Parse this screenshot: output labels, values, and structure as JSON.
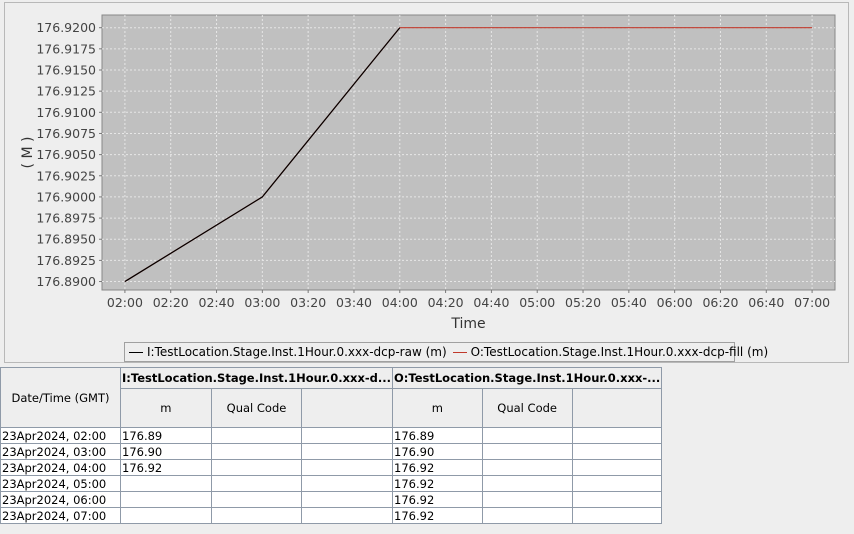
{
  "chart_data": {
    "type": "line",
    "xlabel": "Time",
    "ylabel": "( M )",
    "x_ticks": [
      "02:00",
      "02:20",
      "02:40",
      "03:00",
      "03:20",
      "03:40",
      "04:00",
      "04:20",
      "04:40",
      "05:00",
      "05:20",
      "05:40",
      "06:00",
      "06:20",
      "06:40",
      "07:00"
    ],
    "y_ticks": [
      "176.8900",
      "176.8925",
      "176.8950",
      "176.8975",
      "176.9000",
      "176.9025",
      "176.9050",
      "176.9075",
      "176.9100",
      "176.9125",
      "176.9150",
      "176.9175",
      "176.9200"
    ],
    "xlim": [
      "02:00",
      "07:00"
    ],
    "ylim": [
      176.889,
      176.9215
    ],
    "grid": true,
    "legend_position": "bottom",
    "series": [
      {
        "name": "I:TestLocation.Stage.Inst.1Hour.0.xxx-dcp-raw (m)",
        "color": "#000000",
        "x": [
          "02:00",
          "03:00",
          "04:00"
        ],
        "y": [
          176.89,
          176.9,
          176.92
        ]
      },
      {
        "name": "O:TestLocation.Stage.Inst.1Hour.0.xxx-dcp-fill (m)",
        "color": "#c0392b",
        "x": [
          "02:00",
          "03:00",
          "04:00",
          "05:00",
          "06:00",
          "07:00"
        ],
        "y": [
          176.89,
          176.9,
          176.92,
          176.92,
          176.92,
          176.92
        ]
      }
    ],
    "colors": {
      "plot_background": "#c0c0c0",
      "grid": "#e6e6e6",
      "fill_line": "#c0392b"
    }
  },
  "legend": {
    "items": [
      {
        "label": "I:TestLocation.Stage.Inst.1Hour.0.xxx-dcp-raw (m)",
        "color": "#000000"
      },
      {
        "label": "O:TestLocation.Stage.Inst.1Hour.0.xxx-dcp-fill (m)",
        "color": "#c0392b"
      }
    ]
  },
  "table": {
    "datetime_header": "Date/Time (GMT)",
    "group1_header": "I:TestLocation.Stage.Inst.1Hour.0.xxx-d...",
    "group2_header": "O:TestLocation.Stage.Inst.1Hour.0.xxx-...",
    "unit1": "m",
    "qual1": "Qual Code",
    "unit2": "m",
    "qual2": "Qual Code",
    "rows": [
      {
        "datetime": "23Apr2024, 02:00",
        "in_value": "176.89",
        "out_value": "176.89"
      },
      {
        "datetime": "23Apr2024, 03:00",
        "in_value": "176.90",
        "out_value": "176.90"
      },
      {
        "datetime": "23Apr2024, 04:00",
        "in_value": "176.92",
        "out_value": "176.92"
      },
      {
        "datetime": "23Apr2024, 05:00",
        "in_value": "",
        "out_value": "176.92"
      },
      {
        "datetime": "23Apr2024, 06:00",
        "in_value": "",
        "out_value": "176.92"
      },
      {
        "datetime": "23Apr2024, 07:00",
        "in_value": "",
        "out_value": "176.92"
      }
    ]
  }
}
